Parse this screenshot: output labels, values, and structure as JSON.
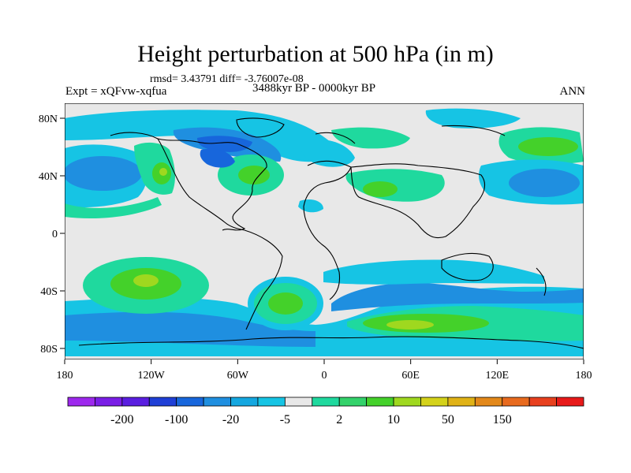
{
  "title": "Height perturbation at 500 hPa (in m)",
  "stats": "rmsd= 3.43791 diff= -3.76007e-08",
  "experiment": "Expt = xQFvw-xqfua",
  "period": "3488kyr BP - 0000kyr BP",
  "season": "ANN",
  "lat_ticks": [
    "80N",
    "40N",
    "0",
    "40S",
    "80S"
  ],
  "lon_ticks": [
    "180",
    "120W",
    "60W",
    "0",
    "60E",
    "120E",
    "180"
  ],
  "colorbar": {
    "colors": [
      "#9d28ed",
      "#7a1ee6",
      "#5a1ee0",
      "#1f3fd6",
      "#1766dc",
      "#1f8fe0",
      "#14a7e0",
      "#16c4e4",
      "#e8e8e8",
      "#1fd99e",
      "#33d26a",
      "#44d12a",
      "#9fd81f",
      "#d4d21a",
      "#e0b216",
      "#e3881a",
      "#e86a1e",
      "#e8401e",
      "#e81a1a"
    ],
    "labels": [
      "-200",
      "-100",
      "-20",
      "-5",
      "2",
      "10",
      "50",
      "150"
    ]
  },
  "legend_colors": {
    "neutral": "#e8e8e8",
    "light_blue": "#16c4e4",
    "medium_blue": "#1f8fe0",
    "dark_blue": "#1766dc",
    "teal_green": "#1fd99e",
    "green": "#44d12a",
    "yellow_green": "#9fd81f"
  }
}
